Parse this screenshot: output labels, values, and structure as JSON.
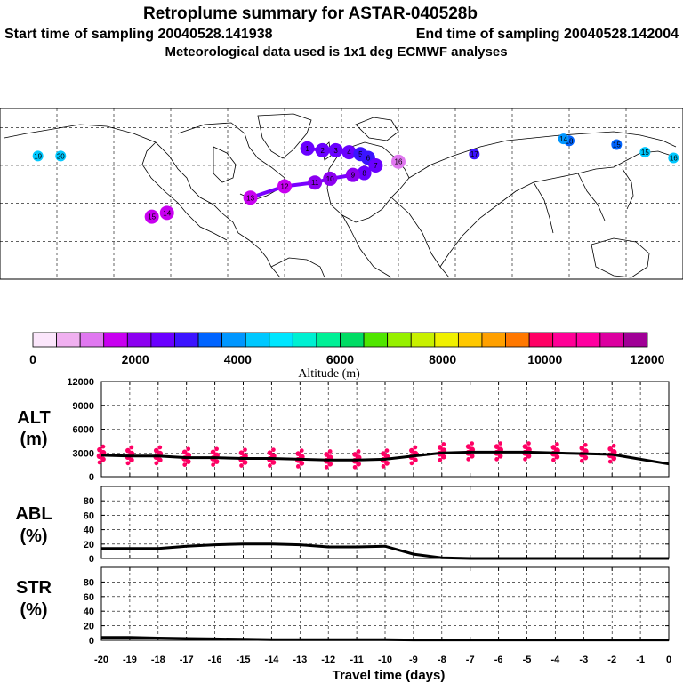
{
  "header": {
    "title": "Retroplume summary for ASTAR-040528b",
    "start_label": "Start time of sampling 20040528.141938",
    "end_label": "End time of sampling 20040528.142004",
    "met_label": "Meteorological data used is 1x1 deg ECMWF analyses"
  },
  "colorbar": {
    "colors": [
      "#fbe6fb",
      "#f0b0f0",
      "#e078f0",
      "#c800f0",
      "#8c00f0",
      "#6a00ff",
      "#3c14ff",
      "#0064ff",
      "#0096ff",
      "#00c8ff",
      "#00e6ff",
      "#00f0d2",
      "#00f096",
      "#00dc64",
      "#50e600",
      "#96f000",
      "#c8f000",
      "#f0f000",
      "#ffc800",
      "#ffa000",
      "#ff7800",
      "#ff0064",
      "#ff0096",
      "#ff00a0",
      "#dc00a0",
      "#a00096"
    ],
    "tick_labels": [
      "0",
      "2000",
      "4000",
      "6000",
      "8000",
      "10000",
      "12000"
    ],
    "label": "Altitude (m)"
  },
  "chart_data": [
    {
      "type": "map",
      "name": "retroplume map",
      "clusters": [
        {
          "label": "1",
          "lon": -18,
          "lat": 69,
          "altitude_m": 2600
        },
        {
          "label": "2",
          "lon": -10,
          "lat": 68,
          "altitude_m": 2500
        },
        {
          "label": "3",
          "lon": -3,
          "lat": 68,
          "altitude_m": 2500
        },
        {
          "label": "4",
          "lon": 4,
          "lat": 67,
          "altitude_m": 2700
        },
        {
          "label": "5",
          "lon": 10,
          "lat": 66,
          "altitude_m": 3000
        },
        {
          "label": "6",
          "lon": 14,
          "lat": 64,
          "altitude_m": 3000
        },
        {
          "label": "7",
          "lon": 18,
          "lat": 60,
          "altitude_m": 2600
        },
        {
          "label": "8",
          "lon": 12,
          "lat": 56,
          "altitude_m": 2400
        },
        {
          "label": "9",
          "lon": 6,
          "lat": 55,
          "altitude_m": 2300
        },
        {
          "label": "10",
          "lon": -6,
          "lat": 53,
          "altitude_m": 2100
        },
        {
          "label": "11",
          "lon": -14,
          "lat": 51,
          "altitude_m": 1900
        },
        {
          "label": "12",
          "lon": -30,
          "lat": 49,
          "altitude_m": 1800
        },
        {
          "label": "13",
          "lon": -48,
          "lat": 43,
          "altitude_m": 1700
        },
        {
          "label": "14",
          "lon": -92,
          "lat": 35,
          "altitude_m": 1600
        },
        {
          "label": "15",
          "lon": -100,
          "lat": 33,
          "altitude_m": 1600
        },
        {
          "label": "16",
          "lon": 30,
          "lat": 62,
          "altitude_m": 1300
        },
        {
          "label": "17",
          "lon": 70,
          "lat": 66,
          "altitude_m": 3200
        },
        {
          "label": "18",
          "lon": 120,
          "lat": 73,
          "altitude_m": 3600
        },
        {
          "label": "19",
          "lon": -160,
          "lat": 65,
          "altitude_m": 4200
        },
        {
          "label": "20",
          "lon": -148,
          "lat": 65,
          "altitude_m": 4200
        },
        {
          "label": "15",
          "lon": 145,
          "lat": 71,
          "altitude_m": 3600
        },
        {
          "label": "16",
          "lon": 175,
          "lat": 64,
          "altitude_m": 4300
        },
        {
          "label": "15",
          "lon": 160,
          "lat": 67,
          "altitude_m": 4300
        },
        {
          "label": "14",
          "lon": 117,
          "lat": 74,
          "altitude_m": 4000
        }
      ]
    },
    {
      "type": "line",
      "name": "ALT",
      "ylabel": "ALT (m)",
      "ylim": [
        0,
        12000
      ],
      "yticks": [
        0,
        3000,
        6000,
        9000,
        12000
      ],
      "x": [
        -20,
        -19,
        -18,
        -17,
        -16,
        -15,
        -14,
        -13,
        -12,
        -11,
        -10,
        -9,
        -8,
        -7,
        -6,
        -5,
        -4,
        -3,
        -2,
        -1,
        0
      ],
      "y": [
        2700,
        2600,
        2600,
        2400,
        2400,
        2300,
        2300,
        2200,
        2100,
        2100,
        2200,
        2600,
        3000,
        3100,
        3100,
        3100,
        3000,
        2900,
        2800,
        2200,
        1600
      ]
    },
    {
      "type": "line",
      "name": "ABL",
      "ylabel": "ABL (%)",
      "ylim": [
        0,
        100
      ],
      "yticks": [
        0,
        20,
        40,
        60,
        80
      ],
      "x": [
        -20,
        -19,
        -18,
        -17,
        -16,
        -15,
        -14,
        -13,
        -12,
        -11,
        -10,
        -9,
        -8,
        -7,
        -6,
        -5,
        -4,
        -3,
        -2,
        -1,
        0
      ],
      "y": [
        14,
        14,
        14,
        17,
        19,
        20,
        20,
        19,
        16,
        16,
        17,
        6,
        1,
        0,
        0,
        0,
        0,
        0,
        0,
        0,
        0
      ]
    },
    {
      "type": "line",
      "name": "STR",
      "ylabel": "STR (%)",
      "ylim": [
        0,
        100
      ],
      "yticks": [
        0,
        20,
        40,
        60,
        80
      ],
      "x": [
        -20,
        -19,
        -18,
        -17,
        -16,
        -15,
        -14,
        -13,
        -12,
        -11,
        -10,
        -9,
        -8,
        -7,
        -6,
        -5,
        -4,
        -3,
        -2,
        -1,
        0
      ],
      "y": [
        4,
        4,
        3,
        2.5,
        2,
        1.5,
        1,
        1,
        1,
        1,
        1,
        0.5,
        0.5,
        0.5,
        0.5,
        0.5,
        0.5,
        0.5,
        0.5,
        0.5,
        0.5
      ],
      "xlabel": "Travel time (days)",
      "xticks": [
        -20,
        -19,
        -18,
        -17,
        -16,
        -15,
        -14,
        -13,
        -12,
        -11,
        -10,
        -9,
        -8,
        -7,
        -6,
        -5,
        -4,
        -3,
        -2,
        -1,
        0
      ]
    }
  ],
  "panel_labels": {
    "alt_top": "ALT",
    "alt_bottom": "(m)",
    "abl_top": "ABL",
    "abl_bottom": "(%)",
    "str_top": "STR",
    "str_bottom": "(%)"
  }
}
